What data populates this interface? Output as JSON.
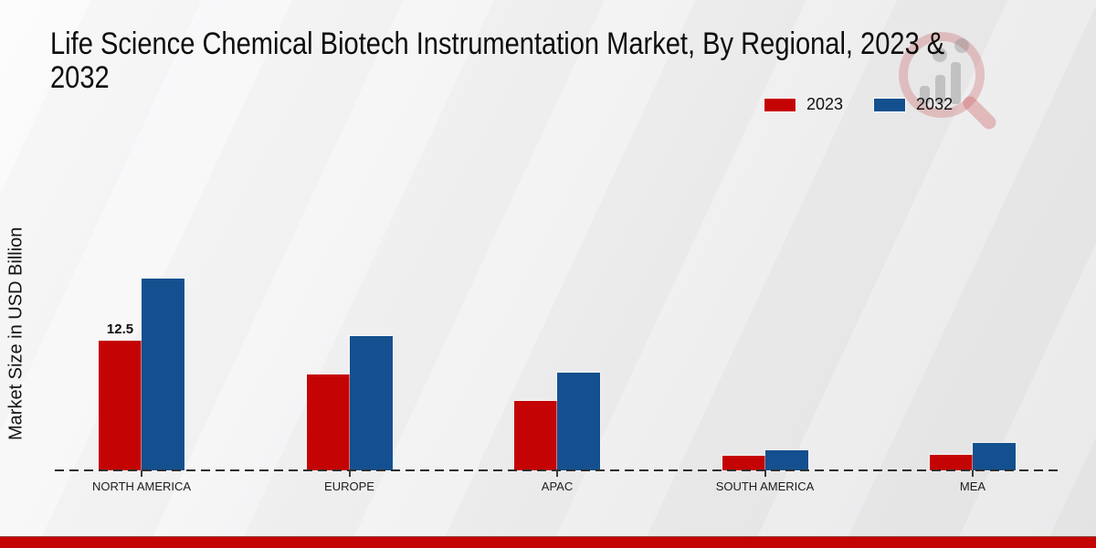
{
  "title": "Life Science Chemical Biotech Instrumentation Market, By Regional, 2023 & 2032",
  "y_axis_label": "Market Size in USD Billion",
  "legend": {
    "items": [
      {
        "label": "2023",
        "color": "#c40404"
      },
      {
        "label": "2032",
        "color": "#14508f"
      }
    ],
    "position": "top-right"
  },
  "chart_data": {
    "type": "bar",
    "title": "Life Science Chemical Biotech Instrumentation Market, By Regional, 2023 & 2032",
    "xlabel": "",
    "ylabel": "Market Size in USD Billion",
    "categories": [
      "NORTH AMERICA",
      "EUROPE",
      "APAC",
      "SOUTH AMERICA",
      "MEA"
    ],
    "series": [
      {
        "name": "2023",
        "color": "#c40404",
        "values": [
          12.5,
          9.2,
          6.7,
          1.4,
          1.5
        ]
      },
      {
        "name": "2032",
        "color": "#14508f",
        "values": [
          18.5,
          12.9,
          9.4,
          1.9,
          2.6
        ]
      }
    ],
    "data_labels": [
      {
        "series": "2023",
        "category": "NORTH AMERICA",
        "value": "12.5"
      }
    ],
    "ylim": [
      0,
      20
    ],
    "grid": false,
    "baseline_style": "dashed",
    "legend_position": "top-right"
  },
  "watermark": {
    "name": "market-research-magnifier-logo"
  },
  "footer": {
    "bar_color": "#c40404"
  },
  "colors": {
    "series_2023": "#c40404",
    "series_2032": "#14508f",
    "background_light": "#fbfbfc",
    "background_dark": "#e6e6e7",
    "axis_line": "#2e2e2e"
  }
}
